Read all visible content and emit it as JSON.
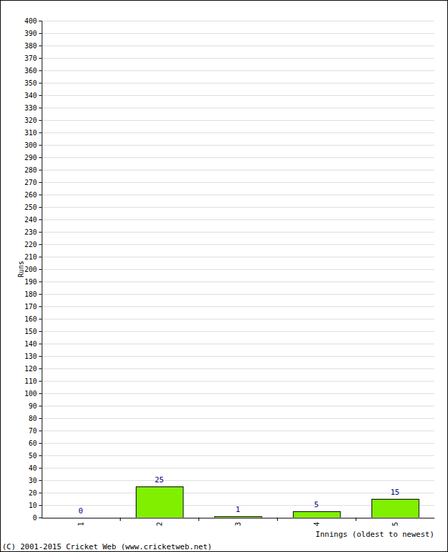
{
  "chart_data": {
    "type": "bar",
    "categories": [
      "1",
      "2",
      "3",
      "4",
      "5"
    ],
    "values": [
      0,
      25,
      1,
      5,
      15
    ],
    "color": "#80f000",
    "x_label": "Innings (oldest to newest)",
    "y_label": "Runs",
    "annotations": [
      "(C) 2001-2015 Cricket Web (www.cricketweb.net)"
    ],
    "ylim": [
      0,
      400
    ],
    "yticks": [
      0,
      10,
      20,
      30,
      40,
      50,
      60,
      70,
      80,
      90,
      100,
      110,
      120,
      130,
      140,
      150,
      160,
      170,
      180,
      190,
      200,
      210,
      220,
      230,
      240,
      250,
      260,
      270,
      280,
      290,
      300,
      310,
      320,
      330,
      340,
      350,
      360,
      370,
      380,
      390,
      400
    ],
    "grid": true,
    "data_labels": true
  }
}
